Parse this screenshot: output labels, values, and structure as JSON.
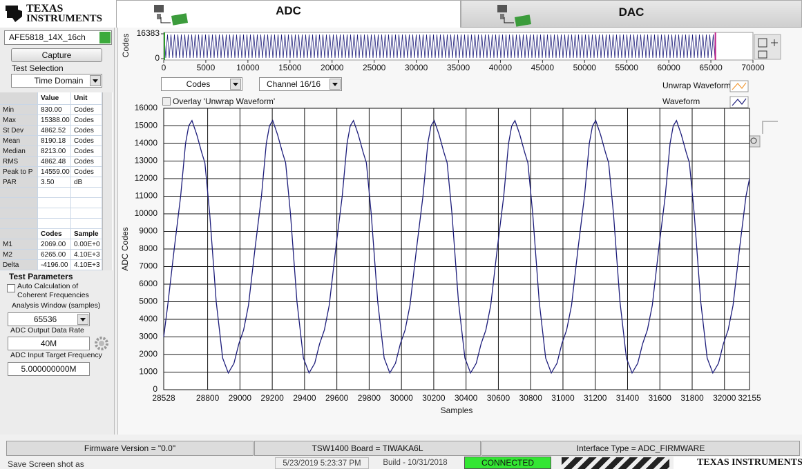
{
  "header": {
    "logo_top": "TEXAS",
    "logo_bottom": "INSTRUMENTS"
  },
  "tabs": [
    "ADC",
    "DAC"
  ],
  "left_panel": {
    "device_select": "AFE5818_14X_16ch",
    "capture_button": "Capture",
    "test_selection_label": "Test Selection",
    "test_selection": "Time Domain",
    "stats_table": {
      "header": [
        "Value",
        "Unit"
      ],
      "rows": [
        [
          "Min",
          "830.00",
          "Codes"
        ],
        [
          "Max",
          "15388.00",
          "Codes"
        ],
        [
          "St Dev",
          "4862.52",
          "Codes"
        ],
        [
          "Mean",
          "8190.18",
          "Codes"
        ],
        [
          "Median",
          "8213.00",
          "Codes"
        ],
        [
          "RMS",
          "4862.48",
          "Codes"
        ],
        [
          "Peak to P",
          "14559.00",
          "Codes"
        ],
        [
          "PAR",
          "3.50",
          "dB"
        ]
      ]
    },
    "marker_table": {
      "header": [
        "Codes",
        "Sample"
      ],
      "rows": [
        [
          "M1",
          "2069.00",
          "0.00E+0"
        ],
        [
          "M2",
          "6265.00",
          "4.10E+3"
        ],
        [
          "Delta",
          "-4196.00",
          "4.10E+3"
        ]
      ]
    },
    "test_parameters": {
      "title": "Test Parameters",
      "auto_calc_line1": "Auto Calculation of",
      "auto_calc_line2": "Coherent Frequencies",
      "analysis_window_label": "Analysis Window (samples)",
      "analysis_window": "65536",
      "data_rate_label": "ADC Output Data Rate",
      "data_rate": "40M",
      "target_freq_label": "ADC Input Target Frequency",
      "target_freq": "5.000000000M"
    }
  },
  "controls": {
    "unit_select": "Codes",
    "channel_select": "Channel 16/16"
  },
  "overview_chart": {
    "ylabel": "Codes",
    "xlim": [
      0,
      70000
    ],
    "xticks": [
      0,
      5000,
      10000,
      15000,
      20000,
      25000,
      30000,
      35000,
      40000,
      45000,
      50000,
      55000,
      60000,
      65000,
      70000
    ],
    "ylim": [
      0,
      16383
    ],
    "yticks": [
      0,
      16383
    ],
    "data_xrange": [
      0,
      65536
    ],
    "color": "#1c1c7a"
  },
  "chart_data": {
    "type": "line",
    "xlabel": "Samples",
    "ylabel": "ADC Codes",
    "xlim": [
      28528,
      32155
    ],
    "xticks": [
      28528,
      28800,
      29000,
      29200,
      29400,
      29600,
      29800,
      30000,
      30200,
      30400,
      30600,
      30800,
      31000,
      31200,
      31400,
      31600,
      31800,
      32000,
      32155
    ],
    "ylim": [
      0,
      16000
    ],
    "yticks": [
      0,
      1000,
      2000,
      3000,
      4000,
      5000,
      6000,
      7000,
      8000,
      9000,
      10000,
      11000,
      12000,
      13000,
      14000,
      15000,
      16000
    ],
    "grid": true,
    "x": [
      28528,
      28553,
      28593,
      28633,
      28663,
      28683,
      28703,
      28733,
      28763,
      28783,
      28813,
      28853,
      28893,
      28928,
      28963,
      28993,
      29023,
      29053,
      29093,
      29133,
      29163,
      29183,
      29203,
      29233,
      29263,
      29283,
      29313,
      29353,
      29393,
      29428,
      29463,
      29493,
      29523,
      29553,
      29593,
      29633,
      29663,
      29683,
      29703,
      29733,
      29763,
      29783,
      29813,
      29853,
      29893,
      29928,
      29963,
      29993,
      30023,
      30053,
      30093,
      30133,
      30163,
      30183,
      30203,
      30233,
      30263,
      30283,
      30313,
      30353,
      30393,
      30428,
      30463,
      30493,
      30523,
      30553,
      30593,
      30633,
      30663,
      30683,
      30703,
      30733,
      30763,
      30783,
      30813,
      30853,
      30893,
      30928,
      30963,
      30993,
      31023,
      31053,
      31093,
      31133,
      31163,
      31183,
      31203,
      31233,
      31263,
      31283,
      31313,
      31353,
      31393,
      31428,
      31463,
      31493,
      31523,
      31553,
      31593,
      31633,
      31663,
      31683,
      31703,
      31733,
      31763,
      31783,
      31813,
      31853,
      31893,
      31928,
      31963,
      31993,
      32023,
      32053,
      32093,
      32133,
      32155
    ],
    "series": [
      {
        "name": "Waveform",
        "color": "#1c1c7a",
        "values": [
          3000,
          4800,
          8000,
          11000,
          14000,
          15000,
          15300,
          14500,
          13500,
          12900,
          10000,
          5000,
          1800,
          950,
          1500,
          2600,
          3400,
          4800,
          8000,
          11000,
          14000,
          15000,
          15300,
          14500,
          13500,
          12900,
          10000,
          5000,
          1800,
          950,
          1500,
          2600,
          3400,
          4800,
          8000,
          11000,
          14000,
          15000,
          15300,
          14500,
          13500,
          12900,
          10000,
          5000,
          1800,
          950,
          1500,
          2600,
          3400,
          4800,
          8000,
          11000,
          14000,
          15000,
          15300,
          14500,
          13500,
          12900,
          10000,
          5000,
          1800,
          950,
          1500,
          2600,
          3400,
          4800,
          8000,
          11000,
          14000,
          15000,
          15300,
          14500,
          13500,
          12900,
          10000,
          5000,
          1800,
          950,
          1500,
          2600,
          3400,
          4800,
          8000,
          11000,
          14000,
          15000,
          15300,
          14500,
          13500,
          12900,
          10000,
          5000,
          1800,
          950,
          1500,
          2600,
          3400,
          4800,
          8000,
          11000,
          14000,
          15000,
          15300,
          14500,
          13500,
          12900,
          10000,
          5000,
          1800,
          950,
          1500,
          2600,
          3400,
          4800,
          8000,
          11000,
          12000
        ]
      }
    ],
    "overlay_series": {
      "name": "Unwrap Waveform",
      "color": "#f29b38",
      "shown": false
    },
    "overlay_label": "Overlay 'Unwrap Waveform'"
  },
  "status_bar": {
    "firmware": "Firmware Version = \"0.0\"",
    "board": "TSW1400 Board = TIWAKA6L",
    "interface": "Interface Type = ADC_FIRMWARE"
  },
  "footer": {
    "save_label": "Save Screen shot as",
    "timestamp": "5/23/2019 5:23:37 PM",
    "build": "Build  - 10/31/2018",
    "connection": "CONNECTED",
    "logo": "TEXAS INSTRUMENTS"
  }
}
